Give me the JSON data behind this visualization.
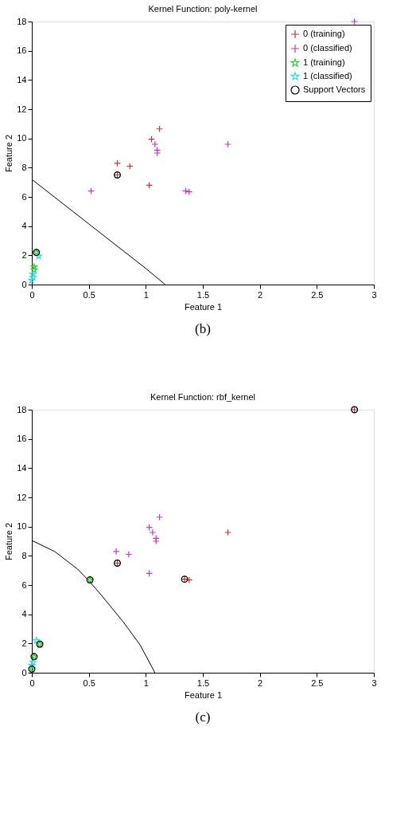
{
  "chart_data": [
    {
      "type": "scatter",
      "title": "Kernel Function: poly-kernel",
      "xlabel": "Feature 1",
      "ylabel": "Feature 2",
      "annotations": [
        "(b)"
      ],
      "xlim": [
        0,
        3
      ],
      "ylim": [
        0,
        18
      ],
      "xticks": [
        0,
        0.5,
        1,
        1.5,
        2,
        2.5,
        3
      ],
      "yticks": [
        0,
        2,
        4,
        6,
        8,
        10,
        12,
        14,
        16,
        18
      ],
      "grid": false,
      "legend": "top right",
      "series": [
        {
          "name": "0 (training)",
          "color": "#cc3333",
          "marker": "cross",
          "x": [
            0.75,
            0.86,
            1.05,
            1.12,
            1.03,
            0.75
          ],
          "values": [
            8.3,
            8.1,
            9.95,
            10.65,
            6.8,
            7.5
          ]
        },
        {
          "name": "0 (classified)",
          "color": "#cc33cc",
          "marker": "cross",
          "x": [
            1.08,
            1.1,
            1.1,
            1.72,
            0.52,
            1.35,
            1.38,
            2.83
          ],
          "values": [
            9.6,
            9.2,
            9.0,
            9.6,
            6.4,
            6.4,
            6.35,
            18
          ]
        },
        {
          "name": "1 (training)",
          "color": "#33cc33",
          "marker": "star",
          "x": [
            0.04,
            0.02,
            0.02
          ],
          "values": [
            2.2,
            1.2,
            1.0
          ]
        },
        {
          "name": "1 (classified)",
          "color": "#33dddd",
          "marker": "star",
          "x": [
            0.06,
            0.01,
            0.01,
            0.0
          ],
          "values": [
            1.95,
            0.7,
            0.5,
            0.3
          ]
        },
        {
          "name": "Support Vectors",
          "color": "#000000",
          "marker": "circle",
          "x": [
            0.75,
            0.04
          ],
          "values": [
            7.5,
            2.2
          ]
        },
        {
          "type": "line",
          "color": "#000000",
          "line_style": "solid",
          "x": [
            0,
            0.5,
            1.0,
            1.17
          ],
          "values": [
            7.2,
            4.15,
            1.1,
            0
          ]
        }
      ]
    },
    {
      "type": "scatter",
      "title": "Kernel Function: rbf_kernel",
      "xlabel": "Feature 1",
      "ylabel": "Feature 2",
      "annotations": [
        "(c)"
      ],
      "xlim": [
        0,
        3
      ],
      "ylim": [
        0,
        18
      ],
      "xticks": [
        0,
        0.5,
        1,
        1.5,
        2,
        2.5,
        3
      ],
      "yticks": [
        0,
        2,
        4,
        6,
        8,
        10,
        12,
        14,
        16,
        18
      ],
      "grid": false,
      "legend": "top right",
      "series": [
        {
          "name": "0 (training)",
          "color": "#cc3333",
          "marker": "cross",
          "x": [
            1.72,
            1.38,
            2.83,
            0.75,
            1.34
          ],
          "values": [
            9.6,
            6.35,
            18,
            7.5,
            6.4
          ]
        },
        {
          "name": "0 (classified)",
          "color": "#cc33cc",
          "marker": "cross",
          "x": [
            0.74,
            0.85,
            1.03,
            1.12,
            1.06,
            1.09,
            1.09,
            1.03
          ],
          "values": [
            8.3,
            8.1,
            9.95,
            10.65,
            9.6,
            9.2,
            9.0,
            6.8
          ]
        },
        {
          "name": "1 (training)",
          "color": "#33cc33",
          "marker": "star",
          "x": [
            0.51,
            0.07,
            0.02,
            0.0
          ],
          "values": [
            6.35,
            1.95,
            1.1,
            0.25
          ]
        },
        {
          "name": "1 (classified)",
          "color": "#33dddd",
          "marker": "star",
          "x": [
            0.04,
            0.01,
            0.0
          ],
          "values": [
            2.2,
            0.7,
            0.5
          ]
        },
        {
          "name": "Support Vectors",
          "color": "#000000",
          "marker": "circle",
          "x": [
            2.83,
            0.75,
            1.34,
            0.51,
            0.07,
            0.02,
            0.0
          ],
          "values": [
            18,
            7.5,
            6.4,
            6.35,
            1.95,
            1.1,
            0.25
          ]
        },
        {
          "type": "line",
          "color": "#000000",
          "line_style": "solid",
          "x": [
            0,
            0.2,
            0.4,
            0.5,
            0.6,
            0.8,
            0.95,
            1.08
          ],
          "values": [
            9.05,
            8.3,
            7.1,
            6.3,
            5.4,
            3.5,
            1.9,
            0
          ]
        }
      ]
    }
  ]
}
